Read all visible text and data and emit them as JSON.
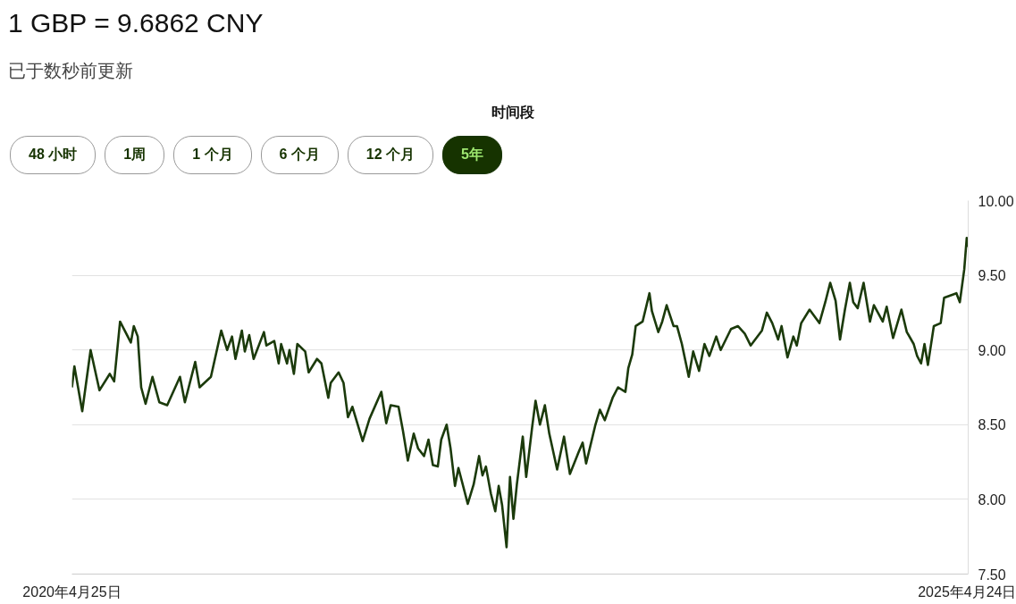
{
  "chart_data": {
    "type": "line",
    "title": "1 GBP = 9.6862 CNY",
    "subtitle": "已于数秒前更新",
    "annotations": [
      "时间段",
      "48 小时",
      "1周",
      "1 个月",
      "6 个月",
      "12 个月",
      "5年"
    ],
    "x": [
      "2020-04-25",
      "2020-04-30",
      "2020-05-16",
      "2020-06-02",
      "2020-06-20",
      "2020-07-11",
      "2020-07-20",
      "2020-08-01",
      "2020-08-23",
      "2020-08-29",
      "2020-09-06",
      "2020-09-13",
      "2020-09-22",
      "2020-10-06",
      "2020-10-20",
      "2020-11-05",
      "2020-12-01",
      "2020-12-11",
      "2021-01-01",
      "2021-01-10",
      "2021-02-02",
      "2021-02-23",
      "2021-03-07",
      "2021-03-17",
      "2021-03-24",
      "2021-04-06",
      "2021-04-12",
      "2021-04-21",
      "2021-04-30",
      "2021-05-21",
      "2021-05-26",
      "2021-06-11",
      "2021-06-20",
      "2021-06-25",
      "2021-07-07",
      "2021-07-12",
      "2021-07-21",
      "2021-07-28",
      "2021-08-13",
      "2021-08-20",
      "2021-09-06",
      "2021-09-15",
      "2021-09-29",
      "2021-10-04",
      "2021-10-20",
      "2021-10-30",
      "2021-11-08",
      "2021-11-17",
      "2021-12-08",
      "2021-12-22",
      "2022-01-15",
      "2022-01-25",
      "2022-02-03",
      "2022-02-19",
      "2022-02-28",
      "2022-03-10",
      "2022-03-22",
      "2022-03-31",
      "2022-04-12",
      "2022-04-21",
      "2022-04-30",
      "2022-05-10",
      "2022-05-17",
      "2022-05-28",
      "2022-06-05",
      "2022-06-14",
      "2022-06-21",
      "2022-07-10",
      "2022-07-22",
      "2022-08-02",
      "2022-08-09",
      "2022-08-16",
      "2022-08-26",
      "2022-09-04",
      "2022-09-11",
      "2022-09-18",
      "2022-09-27",
      "2022-10-04",
      "2022-10-11",
      "2022-10-18",
      "2022-10-30",
      "2022-11-06",
      "2022-11-18",
      "2022-11-25",
      "2022-12-04",
      "2022-12-14",
      "2022-12-23",
      "2023-01-08",
      "2023-01-22",
      "2023-02-03",
      "2023-02-20",
      "2023-03-01",
      "2023-03-08",
      "2023-03-27",
      "2023-04-05",
      "2023-04-15",
      "2023-05-01",
      "2023-05-12",
      "2023-05-27",
      "2023-06-02",
      "2023-06-10",
      "2023-06-17",
      "2023-07-01",
      "2023-07-15",
      "2023-07-20",
      "2023-08-02",
      "2023-08-10",
      "2023-08-19",
      "2023-09-02",
      "2023-09-09",
      "2023-09-19",
      "2023-10-03",
      "2023-10-12",
      "2023-10-24",
      "2023-11-04",
      "2023-11-14",
      "2023-11-28",
      "2023-12-07",
      "2023-12-28",
      "2024-01-11",
      "2024-01-25",
      "2024-02-06",
      "2024-02-29",
      "2024-03-10",
      "2024-03-21",
      "2024-04-02",
      "2024-04-09",
      "2024-04-21",
      "2024-05-03",
      "2024-05-10",
      "2024-05-19",
      "2024-06-05",
      "2024-06-25",
      "2024-07-07",
      "2024-07-17",
      "2024-07-28",
      "2024-08-06",
      "2024-08-16",
      "2024-08-26",
      "2024-09-02",
      "2024-09-11",
      "2024-09-23",
      "2024-10-06",
      "2024-10-14",
      "2024-11-01",
      "2024-11-09",
      "2024-11-22",
      "2024-12-09",
      "2024-12-20",
      "2025-01-03",
      "2025-01-10",
      "2025-01-18",
      "2025-01-25",
      "2025-02-01",
      "2025-02-13",
      "2025-02-27",
      "2025-03-06",
      "2025-03-31",
      "2025-04-07",
      "2025-04-16",
      "2025-04-21",
      "2025-04-24"
    ],
    "series": [
      {
        "color": "#1b3a0b",
        "values": [
          8.75,
          8.89,
          8.59,
          9.0,
          8.73,
          8.84,
          8.79,
          9.19,
          9.05,
          9.16,
          9.09,
          8.75,
          8.64,
          8.82,
          8.65,
          8.63,
          8.82,
          8.65,
          8.92,
          8.75,
          8.82,
          9.13,
          9.0,
          9.09,
          8.94,
          9.13,
          8.99,
          9.1,
          8.94,
          9.12,
          9.03,
          9.06,
          8.91,
          9.04,
          8.91,
          9.0,
          8.84,
          9.04,
          8.99,
          8.85,
          8.94,
          8.91,
          8.68,
          8.78,
          8.85,
          8.78,
          8.55,
          8.62,
          8.39,
          8.54,
          8.72,
          8.51,
          8.63,
          8.62,
          8.46,
          8.26,
          8.44,
          8.34,
          8.29,
          8.4,
          8.23,
          8.22,
          8.4,
          8.5,
          8.34,
          8.09,
          8.21,
          7.97,
          8.1,
          8.29,
          8.16,
          8.22,
          8.04,
          7.92,
          8.09,
          7.96,
          7.68,
          8.15,
          7.87,
          8.1,
          8.42,
          8.15,
          8.48,
          8.66,
          8.5,
          8.63,
          8.44,
          8.2,
          8.42,
          8.17,
          8.31,
          8.38,
          8.24,
          8.5,
          8.6,
          8.53,
          8.68,
          8.75,
          8.72,
          8.88,
          8.97,
          9.16,
          9.19,
          9.38,
          9.26,
          9.12,
          9.19,
          9.3,
          9.16,
          9.16,
          9.04,
          8.82,
          8.99,
          8.86,
          9.04,
          8.96,
          9.09,
          9.0,
          9.14,
          9.16,
          9.11,
          9.03,
          9.13,
          9.25,
          9.18,
          9.07,
          9.16,
          8.95,
          9.09,
          9.03,
          9.18,
          9.27,
          9.18,
          9.32,
          9.45,
          9.33,
          9.07,
          9.27,
          9.45,
          9.32,
          9.28,
          9.45,
          9.19,
          9.3,
          9.19,
          9.29,
          9.08,
          9.27,
          9.12,
          9.04,
          8.96,
          8.91,
          9.04,
          8.9,
          9.16,
          9.18,
          9.35,
          9.38,
          9.32,
          9.54,
          9.75,
          9.69
        ]
      }
    ],
    "xlim": [
      "2020-04-25",
      "2025-04-24"
    ],
    "xticks": [
      {
        "value": "2020-04-25",
        "label": "2020年4月25日"
      },
      {
        "value": "2025-04-24",
        "label": "2025年4月24日"
      }
    ],
    "ylim": [
      7.5,
      10.0
    ],
    "yticks": [
      {
        "value": 7.5,
        "label": "7.50"
      },
      {
        "value": 8.0,
        "label": "8.00"
      },
      {
        "value": 8.5,
        "label": "8.50"
      },
      {
        "value": 9.0,
        "label": "9.00"
      },
      {
        "value": 9.5,
        "label": "9.50"
      },
      {
        "value": 10.0,
        "label": "10.00"
      }
    ],
    "grid": "y",
    "marker": "none",
    "line_style": "solid"
  }
}
